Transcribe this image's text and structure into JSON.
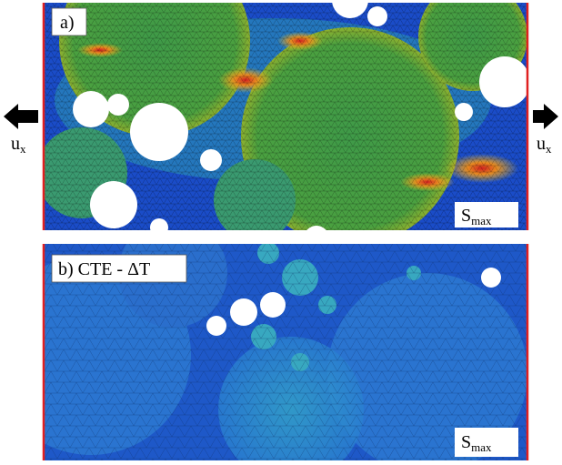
{
  "panel_a": {
    "label": "a)",
    "legend": {
      "symbol": "S",
      "subscript": "max"
    }
  },
  "panel_b": {
    "label": "b) CTE - ΔT",
    "legend": {
      "symbol": "S",
      "subscript": "max"
    }
  },
  "load_left": {
    "symbol": "u",
    "subscript": "x"
  },
  "load_right": {
    "symbol": "u",
    "subscript": "x"
  }
}
